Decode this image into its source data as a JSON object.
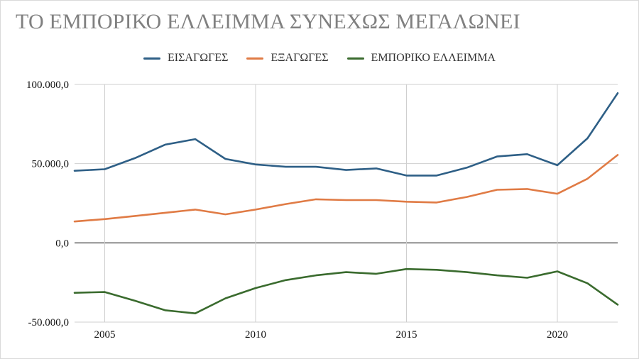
{
  "title": "ΤΟ ΕΜΠΟΡΙΚΟ ΕΛΛΕΙΜΜΑ ΣΥΝΕΧΩΣ ΜΕΓΑΛΩΝΕΙ",
  "chart_data": {
    "type": "line",
    "title": "ΤΟ ΕΜΠΟΡΙΚΟ ΕΛΛΕΙΜΜΑ ΣΥΝΕΧΩΣ ΜΕΓΑΛΩΝΕΙ",
    "xlabel": "",
    "ylabel": "",
    "x": [
      2004,
      2005,
      2006,
      2007,
      2008,
      2009,
      2010,
      2011,
      2012,
      2013,
      2014,
      2015,
      2016,
      2017,
      2018,
      2019,
      2020,
      2021,
      2022
    ],
    "xlim": [
      2004,
      2022
    ],
    "ylim": [
      -50000,
      100000
    ],
    "x_ticks": [
      2005,
      2010,
      2015,
      2020
    ],
    "x_tick_labels": [
      "2005",
      "2010",
      "2015",
      "2020"
    ],
    "y_ticks": [
      100000,
      50000,
      0,
      -50000
    ],
    "y_tick_labels": [
      "100.000,0",
      "50.000,0",
      "0,0",
      "-50.000,0"
    ],
    "grid": true,
    "legend_position": "top-center",
    "series": [
      {
        "name": "ΕΙΣΑΓΩΓΕΣ",
        "color": "#2e5f86",
        "values": [
          45500,
          46500,
          53500,
          62000,
          65500,
          53000,
          49500,
          48000,
          48000,
          46000,
          47000,
          42500,
          42500,
          47500,
          54500,
          56000,
          49000,
          66000,
          94500
        ]
      },
      {
        "name": "ΕΞΑΓΩΓΕΣ",
        "color": "#e07b45",
        "values": [
          13500,
          15000,
          17000,
          19000,
          21000,
          18000,
          21000,
          24500,
          27500,
          27000,
          27000,
          26000,
          25500,
          29000,
          33500,
          34000,
          31000,
          40500,
          55500
        ]
      },
      {
        "name": "ΕΜΠΟΡΙΚΟ ΕΛΛΕΙΜΜΑ",
        "color": "#3a6b2e",
        "values": [
          -31500,
          -31000,
          -36500,
          -42500,
          -44500,
          -35000,
          -28500,
          -23500,
          -20500,
          -18500,
          -19500,
          -16500,
          -17000,
          -18500,
          -20500,
          -22000,
          -18000,
          -25500,
          -39000
        ]
      }
    ]
  }
}
